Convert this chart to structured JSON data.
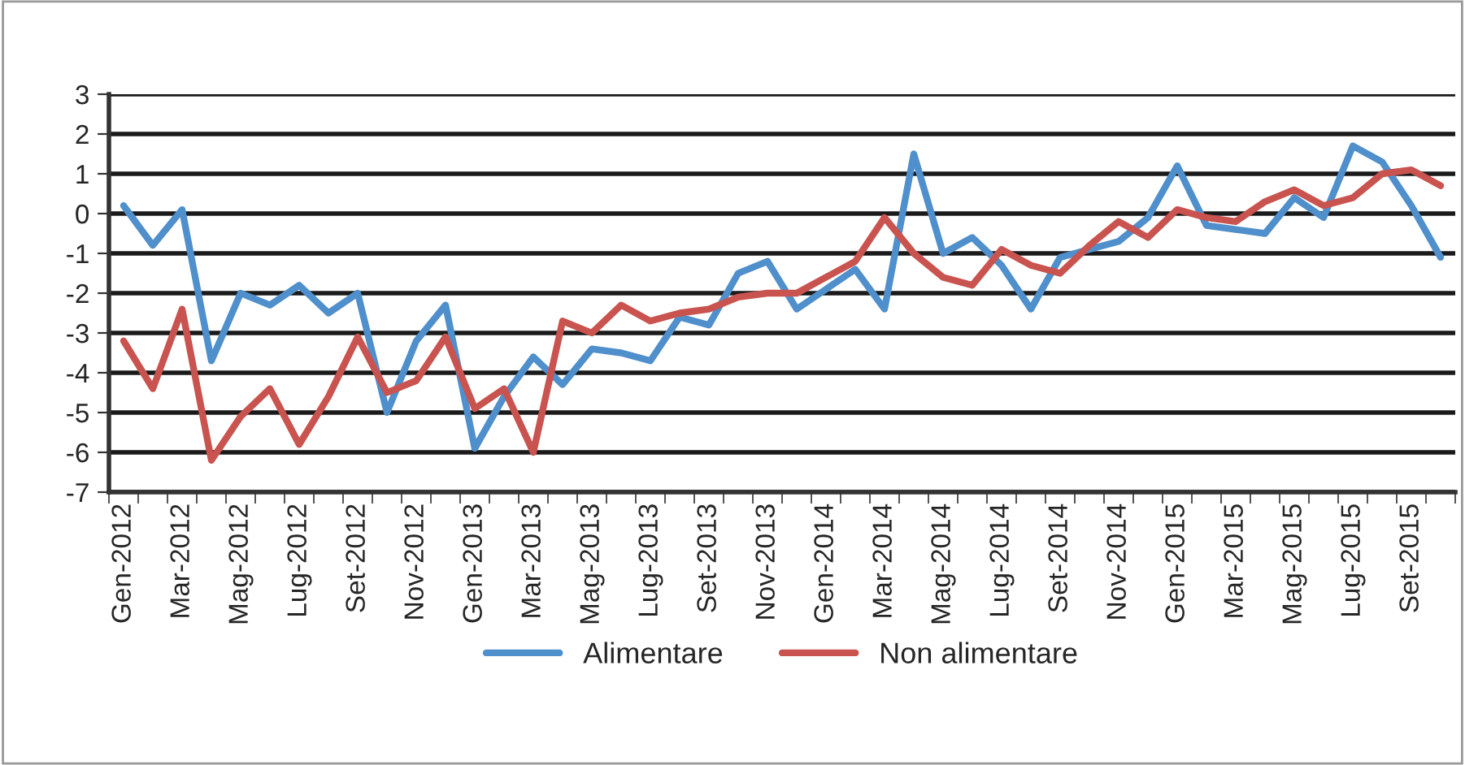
{
  "chart_data": {
    "type": "line",
    "categories": [
      "Gen-2012",
      null,
      "Mar-2012",
      null,
      "Mag-2012",
      null,
      "Lug-2012",
      null,
      "Set-2012",
      null,
      "Nov-2012",
      null,
      "Gen-2013",
      null,
      "Mar-2013",
      null,
      "Mag-2013",
      null,
      "Lug-2013",
      null,
      "Set-2013",
      null,
      "Nov-2013",
      null,
      "Gen-2014",
      null,
      "Mar-2014",
      null,
      "Mag-2014",
      null,
      "Lug-2014",
      null,
      "Set-2014",
      null,
      "Nov-2014",
      null,
      "Gen-2015",
      null,
      "Mar-2015",
      null,
      "Mag-2015",
      null,
      "Lug-2015",
      null,
      "Set-2015",
      null
    ],
    "series": [
      {
        "name": "Alimentare",
        "color": "#4f8fcb",
        "values": [
          0.2,
          -0.8,
          0.1,
          -3.7,
          -2.0,
          -2.3,
          -1.8,
          -2.5,
          -2.0,
          -5.0,
          -3.2,
          -2.3,
          -5.9,
          -4.6,
          -3.6,
          -4.3,
          -3.4,
          -3.5,
          -3.7,
          -2.6,
          -2.8,
          -1.5,
          -1.2,
          -2.4,
          -1.9,
          -1.4,
          -2.4,
          1.5,
          -1.0,
          -0.6,
          -1.3,
          -2.4,
          -1.1,
          -0.9,
          -0.7,
          -0.1,
          1.2,
          -0.3,
          -0.4,
          -0.5,
          0.4,
          -0.1,
          1.7,
          1.3,
          0.2,
          -1.1
        ]
      },
      {
        "name": "Non alimentare",
        "color": "#c9534f",
        "values": [
          -3.2,
          -4.4,
          -2.4,
          -6.2,
          -5.1,
          -4.4,
          -5.8,
          -4.6,
          -3.1,
          -4.5,
          -4.2,
          -3.1,
          -4.9,
          -4.4,
          -6.0,
          -2.7,
          -3.0,
          -2.3,
          -2.7,
          -2.5,
          -2.4,
          -2.1,
          -2.0,
          -2.0,
          -1.6,
          -1.2,
          -0.1,
          -1.0,
          -1.6,
          -1.8,
          -0.9,
          -1.3,
          -1.5,
          -0.8,
          -0.2,
          -0.6,
          0.1,
          -0.1,
          -0.2,
          0.3,
          0.6,
          0.2,
          0.4,
          1.0,
          1.1,
          0.7
        ]
      }
    ],
    "ylim": [
      -7,
      3
    ],
    "yticks": [
      -7,
      -6,
      -5,
      -4,
      -3,
      -2,
      -1,
      0,
      1,
      2,
      3
    ],
    "grid": "y",
    "legend": "bottom",
    "marker": "none",
    "line_style": "solid"
  }
}
